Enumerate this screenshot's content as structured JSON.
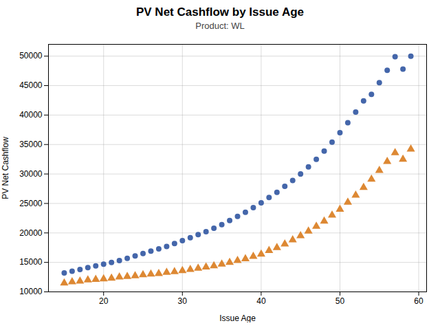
{
  "chart_data": {
    "type": "scatter",
    "title": "PV Net Cashflow by Issue Age",
    "subtitle": "Product: WL",
    "xlabel": "Issue Age",
    "ylabel": "PV Net Cashflow",
    "x": [
      15,
      16,
      17,
      18,
      19,
      20,
      21,
      22,
      23,
      24,
      25,
      26,
      27,
      28,
      29,
      30,
      31,
      32,
      33,
      34,
      35,
      36,
      37,
      38,
      39,
      40,
      41,
      42,
      43,
      44,
      45,
      46,
      47,
      48,
      49,
      50,
      51,
      52,
      53,
      54,
      55,
      56,
      57,
      58,
      59
    ],
    "series": [
      {
        "color": "#4466AA",
        "marker": "circle",
        "values": [
          13200,
          13500,
          13800,
          14100,
          14400,
          14700,
          15000,
          15300,
          15700,
          16100,
          16500,
          16900,
          17300,
          17700,
          18200,
          18700,
          19200,
          19700,
          20200,
          20800,
          21400,
          22100,
          22800,
          23500,
          24300,
          25100,
          26000,
          26900,
          27900,
          28900,
          30000,
          31200,
          32500,
          33900,
          35400,
          37000,
          38700,
          40500,
          42400,
          43500,
          45500,
          47600,
          49900,
          47800,
          50000
        ]
      },
      {
        "color": "#DD8833",
        "marker": "triangle",
        "values": [
          11500,
          11700,
          11800,
          12000,
          12100,
          12200,
          12300,
          12500,
          12600,
          12700,
          12900,
          13000,
          13100,
          13300,
          13400,
          13600,
          13800,
          14000,
          14200,
          14400,
          14700,
          15000,
          15300,
          15600,
          16000,
          16400,
          17000,
          17500,
          18100,
          18800,
          19500,
          20300,
          21100,
          22000,
          23000,
          24000,
          25200,
          26400,
          27700,
          29100,
          30600,
          32100,
          33600,
          32500,
          34200
        ]
      }
    ],
    "xlim": [
      13,
      61
    ],
    "ylim": [
      10000,
      52000
    ],
    "xticks": [
      20,
      30,
      40,
      50,
      60
    ],
    "yticks": [
      10000,
      15000,
      20000,
      25000,
      30000,
      35000,
      40000,
      45000,
      50000
    ],
    "grid": true
  }
}
